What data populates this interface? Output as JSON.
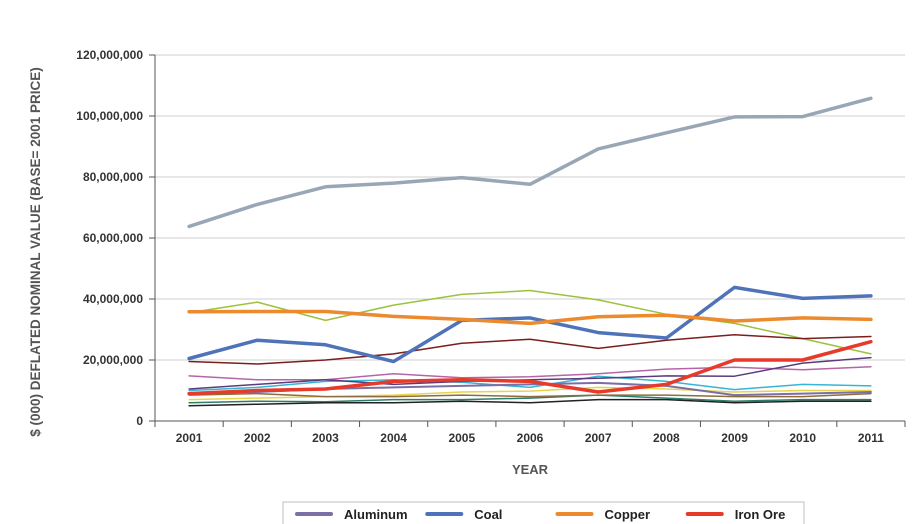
{
  "chart_data": {
    "type": "line",
    "title": "",
    "xlabel": "YEAR",
    "ylabel": "$ (000) DEFLATED NOMINAL VALUE  (BASE= 2001 PRICE)",
    "categories": [
      "2001",
      "2002",
      "2003",
      "2004",
      "2005",
      "2006",
      "2007",
      "2008",
      "2009",
      "2010",
      "2011"
    ],
    "ylim": [
      0,
      120000000
    ],
    "yticks": [
      0,
      20000000,
      40000000,
      60000000,
      80000000,
      100000000,
      120000000
    ],
    "ytick_labels": [
      "0",
      "20,000,000",
      "40,000,000",
      "60,000,000",
      "80,000,000",
      "100,000,000",
      "120,000,000"
    ],
    "grid": "horizontal",
    "legend_position": "bottom",
    "series": [
      {
        "name": "",
        "color": "#98a6b5",
        "width": 3.5,
        "values": [
          63800000,
          71000000,
          76800000,
          78000000,
          79800000,
          77600000,
          89200000,
          94500000,
          99700000,
          99800000,
          105800000
        ]
      },
      {
        "name": "",
        "color": "#9cc13f",
        "width": 1.5,
        "values": [
          35500000,
          39000000,
          33000000,
          38000000,
          41500000,
          42800000,
          39700000,
          35000000,
          32000000,
          27000000,
          22000000
        ]
      },
      {
        "name": "",
        "color": "#7b1e1e",
        "width": 1.5,
        "values": [
          19500000,
          18700000,
          20000000,
          22000000,
          25500000,
          26800000,
          23800000,
          26500000,
          28300000,
          27000000,
          27700000
        ]
      },
      {
        "name": "",
        "color": "#b565a7",
        "width": 1.5,
        "values": [
          14800000,
          13500000,
          13500000,
          15500000,
          14200000,
          14500000,
          15500000,
          17000000,
          17600000,
          16800000,
          17800000
        ]
      },
      {
        "name": "",
        "color": "#36b5d6",
        "width": 1.5,
        "values": [
          10000000,
          11000000,
          13000000,
          13500000,
          12700000,
          11000000,
          14700000,
          13000000,
          10300000,
          12000000,
          11500000
        ]
      },
      {
        "name": "",
        "color": "#5a3b7c",
        "width": 1.5,
        "values": [
          10500000,
          12000000,
          13500000,
          12000000,
          13000000,
          13500000,
          14000000,
          14800000,
          14700000,
          19000000,
          20800000
        ]
      },
      {
        "name": "",
        "color": "#e8d44a",
        "width": 1.5,
        "values": [
          7000000,
          7500000,
          8000000,
          8500000,
          9500000,
          9800000,
          11000000,
          10500000,
          9500000,
          10000000,
          10000000
        ]
      },
      {
        "name": "",
        "color": "#2e7d6b",
        "width": 1.5,
        "values": [
          6000000,
          6500000,
          6300000,
          7000000,
          7000000,
          7500000,
          8500000,
          7500000,
          6500000,
          7000000,
          7000000
        ]
      },
      {
        "name": "",
        "color": "#222222",
        "width": 1.5,
        "values": [
          5000000,
          5500000,
          6000000,
          6000000,
          6500000,
          6000000,
          7000000,
          7000000,
          6000000,
          6500000,
          6500000
        ]
      },
      {
        "name": "",
        "color": "#8b6d3f",
        "width": 1.5,
        "values": [
          8500000,
          9000000,
          8000000,
          8000000,
          8500000,
          8000000,
          8500000,
          8500000,
          8000000,
          8000000,
          9000000
        ]
      },
      {
        "name": "Aluminum",
        "color": "#7c6fa6",
        "width": 2,
        "values": [
          9000000,
          9500000,
          10500000,
          11000000,
          11500000,
          12000000,
          12500000,
          11500000,
          8500000,
          9000000,
          9500000
        ]
      },
      {
        "name": "Coal",
        "color": "#4f73b8",
        "width": 3.5,
        "values": [
          20500000,
          26500000,
          25000000,
          19500000,
          33000000,
          33800000,
          29000000,
          27200000,
          43800000,
          40200000,
          41000000
        ]
      },
      {
        "name": "Copper",
        "color": "#ec8a2e",
        "width": 3.5,
        "values": [
          35800000,
          35900000,
          35900000,
          34300000,
          33300000,
          32000000,
          34200000,
          34700000,
          32800000,
          33800000,
          33300000
        ]
      },
      {
        "name": "Iron Ore",
        "color": "#e63a2a",
        "width": 3.5,
        "values": [
          9000000,
          10000000,
          10500000,
          13000000,
          13500000,
          13000000,
          9500000,
          12000000,
          20000000,
          20000000,
          26000000
        ]
      }
    ]
  }
}
